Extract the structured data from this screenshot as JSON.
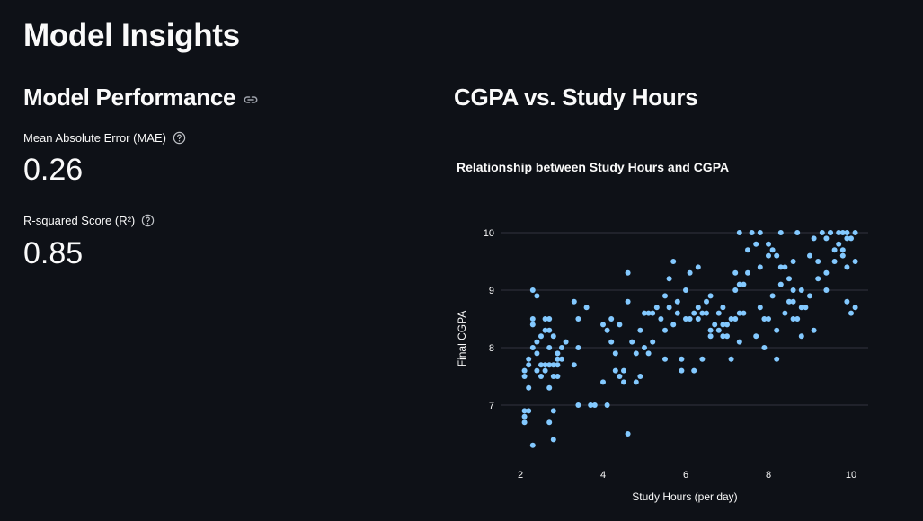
{
  "page": {
    "title": "Model Insights"
  },
  "performance": {
    "title": "Model Performance",
    "metrics": [
      {
        "label": "Mean Absolute Error (MAE)",
        "value": "0.26"
      },
      {
        "label": "R-squared Score (R²)",
        "value": "0.85"
      }
    ]
  },
  "chart_section": {
    "title": "CGPA vs. Study Hours"
  },
  "colors": {
    "background": "#0e1117",
    "point": "#83c9ff",
    "grid": "#31333f"
  },
  "chart_data": {
    "type": "scatter",
    "title": "Relationship between Study Hours and CGPA",
    "xlabel": "Study Hours (per day)",
    "ylabel": "Final CGPA",
    "xlim": [
      1.6,
      10.4
    ],
    "ylim": [
      6.1,
      10.25
    ],
    "xticks": [
      2,
      4,
      6,
      8,
      10
    ],
    "yticks": [
      7,
      8,
      9,
      10
    ],
    "grid": "horizontal",
    "point_color": "#83c9ff",
    "points": [
      [
        2.1,
        7.6
      ],
      [
        2.1,
        7.5
      ],
      [
        2.1,
        6.9
      ],
      [
        2.1,
        6.8
      ],
      [
        2.1,
        6.7
      ],
      [
        2.2,
        6.9
      ],
      [
        2.2,
        7.3
      ],
      [
        2.2,
        7.7
      ],
      [
        2.2,
        7.8
      ],
      [
        2.3,
        8.4
      ],
      [
        2.3,
        9.0
      ],
      [
        2.3,
        8.5
      ],
      [
        2.3,
        8.0
      ],
      [
        2.3,
        6.3
      ],
      [
        2.4,
        8.9
      ],
      [
        2.4,
        8.1
      ],
      [
        2.4,
        7.6
      ],
      [
        2.4,
        7.9
      ],
      [
        2.5,
        8.2
      ],
      [
        2.5,
        7.7
      ],
      [
        2.5,
        7.5
      ],
      [
        2.6,
        8.5
      ],
      [
        2.6,
        8.3
      ],
      [
        2.6,
        7.7
      ],
      [
        2.6,
        7.6
      ],
      [
        2.7,
        8.5
      ],
      [
        2.7,
        8.3
      ],
      [
        2.7,
        8.0
      ],
      [
        2.7,
        7.7
      ],
      [
        2.7,
        7.3
      ],
      [
        2.7,
        6.7
      ],
      [
        2.8,
        7.7
      ],
      [
        2.8,
        7.5
      ],
      [
        2.8,
        6.4
      ],
      [
        2.8,
        6.9
      ],
      [
        2.8,
        8.2
      ],
      [
        2.9,
        7.7
      ],
      [
        2.9,
        7.8
      ],
      [
        2.9,
        7.5
      ],
      [
        2.9,
        7.9
      ],
      [
        3.0,
        7.8
      ],
      [
        3.0,
        8.0
      ],
      [
        3.1,
        8.1
      ],
      [
        3.3,
        8.8
      ],
      [
        3.3,
        7.7
      ],
      [
        3.4,
        8.0
      ],
      [
        3.4,
        8.5
      ],
      [
        3.4,
        7.0
      ],
      [
        3.6,
        8.7
      ],
      [
        3.7,
        7.0
      ],
      [
        3.8,
        7.0
      ],
      [
        4.0,
        8.4
      ],
      [
        4.0,
        7.4
      ],
      [
        4.1,
        8.3
      ],
      [
        4.1,
        7.0
      ],
      [
        4.2,
        8.1
      ],
      [
        4.2,
        8.5
      ],
      [
        4.3,
        7.6
      ],
      [
        4.3,
        7.9
      ],
      [
        4.4,
        8.4
      ],
      [
        4.4,
        7.5
      ],
      [
        4.5,
        7.4
      ],
      [
        4.5,
        7.6
      ],
      [
        4.6,
        8.8
      ],
      [
        4.6,
        9.3
      ],
      [
        4.6,
        6.5
      ],
      [
        4.7,
        8.1
      ],
      [
        4.8,
        7.9
      ],
      [
        4.8,
        7.4
      ],
      [
        4.9,
        7.5
      ],
      [
        4.9,
        8.3
      ],
      [
        5.0,
        8.0
      ],
      [
        5.0,
        8.6
      ],
      [
        5.1,
        7.9
      ],
      [
        5.1,
        8.6
      ],
      [
        5.2,
        8.1
      ],
      [
        5.2,
        8.6
      ],
      [
        5.3,
        8.7
      ],
      [
        5.4,
        8.5
      ],
      [
        5.5,
        8.9
      ],
      [
        5.5,
        8.3
      ],
      [
        5.5,
        7.8
      ],
      [
        5.6,
        9.2
      ],
      [
        5.6,
        8.7
      ],
      [
        5.7,
        8.4
      ],
      [
        5.7,
        9.5
      ],
      [
        5.8,
        8.8
      ],
      [
        5.8,
        8.6
      ],
      [
        5.9,
        7.8
      ],
      [
        5.9,
        7.6
      ],
      [
        6.0,
        9.0
      ],
      [
        6.0,
        8.5
      ],
      [
        6.1,
        9.3
      ],
      [
        6.1,
        8.5
      ],
      [
        6.2,
        8.6
      ],
      [
        6.2,
        7.6
      ],
      [
        6.3,
        9.4
      ],
      [
        6.3,
        8.7
      ],
      [
        6.3,
        8.5
      ],
      [
        6.4,
        8.6
      ],
      [
        6.4,
        7.8
      ],
      [
        6.5,
        8.8
      ],
      [
        6.5,
        8.6
      ],
      [
        6.6,
        8.9
      ],
      [
        6.6,
        8.3
      ],
      [
        6.6,
        8.2
      ],
      [
        6.7,
        8.4
      ],
      [
        6.8,
        8.6
      ],
      [
        6.8,
        8.3
      ],
      [
        6.9,
        8.2
      ],
      [
        6.9,
        8.4
      ],
      [
        6.9,
        8.7
      ],
      [
        7.0,
        8.2
      ],
      [
        7.0,
        8.4
      ],
      [
        7.1,
        7.8
      ],
      [
        7.1,
        8.5
      ],
      [
        7.2,
        8.5
      ],
      [
        7.2,
        9.0
      ],
      [
        7.2,
        9.3
      ],
      [
        7.3,
        10.0
      ],
      [
        7.3,
        9.1
      ],
      [
        7.3,
        8.6
      ],
      [
        7.3,
        8.1
      ],
      [
        7.4,
        9.1
      ],
      [
        7.4,
        8.6
      ],
      [
        7.5,
        9.7
      ],
      [
        7.5,
        9.3
      ],
      [
        7.6,
        10.0
      ],
      [
        7.7,
        9.8
      ],
      [
        7.7,
        8.2
      ],
      [
        7.8,
        10.0
      ],
      [
        7.8,
        9.4
      ],
      [
        7.8,
        8.7
      ],
      [
        7.9,
        8.5
      ],
      [
        7.9,
        8.0
      ],
      [
        8.0,
        9.6
      ],
      [
        8.0,
        8.5
      ],
      [
        8.0,
        9.8
      ],
      [
        8.1,
        9.7
      ],
      [
        8.1,
        8.9
      ],
      [
        8.2,
        9.6
      ],
      [
        8.2,
        8.3
      ],
      [
        8.2,
        7.8
      ],
      [
        8.3,
        10.0
      ],
      [
        8.3,
        9.4
      ],
      [
        8.3,
        9.1
      ],
      [
        8.4,
        9.4
      ],
      [
        8.4,
        8.6
      ],
      [
        8.5,
        8.8
      ],
      [
        8.5,
        9.2
      ],
      [
        8.6,
        9.5
      ],
      [
        8.6,
        9.0
      ],
      [
        8.6,
        8.5
      ],
      [
        8.6,
        8.8
      ],
      [
        8.7,
        8.5
      ],
      [
        8.7,
        10.0
      ],
      [
        8.8,
        8.7
      ],
      [
        8.8,
        8.2
      ],
      [
        8.8,
        9.0
      ],
      [
        8.9,
        8.7
      ],
      [
        9.0,
        9.6
      ],
      [
        9.0,
        8.9
      ],
      [
        9.1,
        9.9
      ],
      [
        9.1,
        8.3
      ],
      [
        9.2,
        9.5
      ],
      [
        9.2,
        9.2
      ],
      [
        9.3,
        10.0
      ],
      [
        9.4,
        9.9
      ],
      [
        9.4,
        9.0
      ],
      [
        9.4,
        9.3
      ],
      [
        9.5,
        10.0
      ],
      [
        9.5,
        10.0
      ],
      [
        9.6,
        9.7
      ],
      [
        9.6,
        9.5
      ],
      [
        9.7,
        10.0
      ],
      [
        9.7,
        9.8
      ],
      [
        9.8,
        10.0
      ],
      [
        9.8,
        9.7
      ],
      [
        9.8,
        9.6
      ],
      [
        9.9,
        10.0
      ],
      [
        9.9,
        9.4
      ],
      [
        9.9,
        9.9
      ],
      [
        9.9,
        8.8
      ],
      [
        10.0,
        8.6
      ],
      [
        10.0,
        9.9
      ],
      [
        10.1,
        10.0
      ],
      [
        10.1,
        9.5
      ],
      [
        10.1,
        8.7
      ]
    ]
  }
}
